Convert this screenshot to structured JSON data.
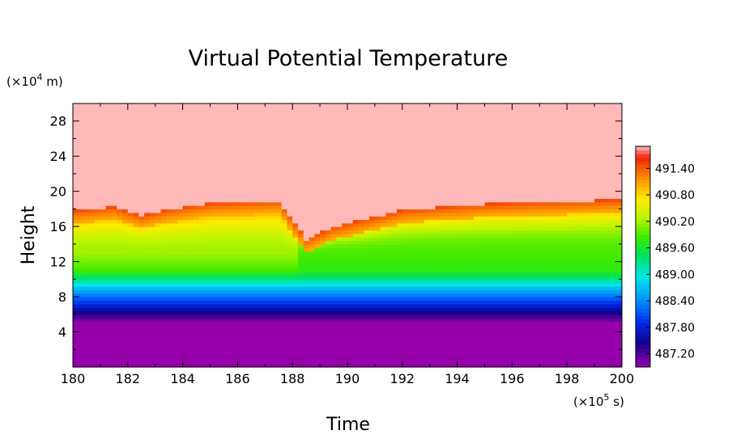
{
  "chart_data": {
    "type": "heatmap",
    "title": "Virtual Potential Temperature",
    "xlabel": "Time",
    "ylabel": "Height",
    "x_unit": {
      "prefix": "(×10",
      "exp": "5",
      "suffix": " s)"
    },
    "y_unit": {
      "prefix": "(×10",
      "exp": "4",
      "suffix": " m)"
    },
    "xlim": [
      180,
      200
    ],
    "ylim": [
      0,
      30
    ],
    "x_ticks": [
      "180",
      "182",
      "184",
      "186",
      "188",
      "190",
      "192",
      "194",
      "196",
      "198",
      "200"
    ],
    "x_tick_values": [
      180,
      182,
      184,
      186,
      188,
      190,
      192,
      194,
      196,
      198,
      200
    ],
    "y_ticks": [
      "4",
      "8",
      "12",
      "16",
      "20",
      "24",
      "28"
    ],
    "y_tick_values": [
      4,
      8,
      12,
      16,
      20,
      24,
      28
    ],
    "colorbar": {
      "min": 486.9,
      "max": 491.9,
      "ticks": [
        "487.20",
        "487.80",
        "488.40",
        "489.00",
        "489.60",
        "490.20",
        "490.80",
        "491.40"
      ],
      "tick_values": [
        487.2,
        487.8,
        488.4,
        489.0,
        489.6,
        490.2,
        490.8,
        491.4
      ]
    },
    "profile": {
      "heights": [
        0,
        5,
        6,
        7,
        8,
        9,
        10,
        11,
        13,
        16,
        30
      ],
      "values": [
        486.9,
        486.9,
        487.35,
        487.8,
        488.25,
        488.7,
        489.3,
        489.75,
        489.9,
        490.1,
        491.9
      ]
    },
    "top_boundary": {
      "time": [
        180,
        181.5,
        182.5,
        183.5,
        185,
        187.5,
        188.5,
        189.5,
        192,
        195,
        200
      ],
      "height": [
        17.8,
        18.3,
        17.3,
        18.0,
        18.7,
        19.0,
        14.6,
        16.0,
        17.9,
        18.6,
        19.1
      ]
    },
    "cap_value": 491.9,
    "pre_jump_offset": 0.3,
    "jump_time": 188.2
  }
}
